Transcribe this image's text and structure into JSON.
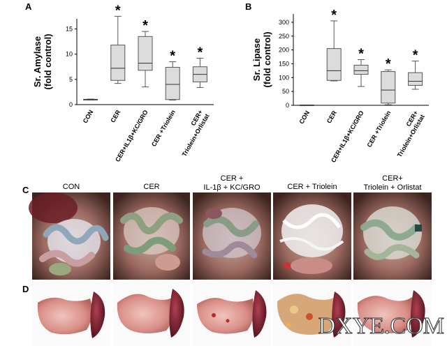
{
  "panels": {
    "A": "A",
    "B": "B",
    "C": "C",
    "D": "D"
  },
  "chart_data": [
    {
      "type": "box",
      "panel": "A",
      "ylabel": "Sr. Amylase (fold control)",
      "ylabel_lines": [
        "Sr. Amylase",
        "(fold control)"
      ],
      "ylim": [
        0,
        17
      ],
      "yticks": [
        0,
        5,
        10,
        15
      ],
      "categories": [
        "CON",
        "CER",
        "CER+IL1β+KC/GRO",
        "CER +Triolein",
        "CER+ Triolein+Orlistat"
      ],
      "category_lines": [
        [
          "CON"
        ],
        [
          "CER"
        ],
        [
          "CER+IL1β+KC/GRO"
        ],
        [
          "CER +Triolein"
        ],
        [
          "CER+",
          "Triolein+Orlistat"
        ]
      ],
      "boxes": [
        {
          "min": 0.9,
          "q1": 0.95,
          "median": 1.0,
          "q3": 1.05,
          "max": 1.1
        },
        {
          "min": 4.2,
          "q1": 4.8,
          "median": 7.2,
          "q3": 11.8,
          "max": 17.5
        },
        {
          "min": 3.5,
          "q1": 6.8,
          "median": 8.2,
          "q3": 13.5,
          "max": 14.5
        },
        {
          "min": 0.9,
          "q1": 1.0,
          "median": 4.0,
          "q3": 7.4,
          "max": 8.5
        },
        {
          "min": 3.4,
          "q1": 4.5,
          "median": 6.0,
          "q3": 7.5,
          "max": 9.2
        }
      ],
      "significance": [
        "",
        "*",
        "*",
        "*",
        "*"
      ],
      "grid": false
    },
    {
      "type": "box",
      "panel": "B",
      "ylabel": "Sr. Lipase (fold control)",
      "ylabel_lines": [
        "Sr. Lipase",
        "(fold control)"
      ],
      "ylim": [
        0,
        330
      ],
      "yticks": [
        0,
        50,
        100,
        150,
        200,
        250,
        300
      ],
      "categories": [
        "CON",
        "CER",
        "CER+IL1β+KC/GRO",
        "CER +Triolein",
        "CER+ Triolein+Orlistat"
      ],
      "category_lines": [
        [
          "CON"
        ],
        [
          "CER"
        ],
        [
          "CER+IL1β+KC/GRO"
        ],
        [
          "CER +Triolein"
        ],
        [
          "CER+",
          "Triolein+Orlistat"
        ]
      ],
      "boxes": [
        {
          "min": 0.8,
          "q1": 0.9,
          "median": 1.0,
          "q3": 1.1,
          "max": 1.2
        },
        {
          "min": 88,
          "q1": 90,
          "median": 125,
          "q3": 205,
          "max": 305
        },
        {
          "min": 68,
          "q1": 112,
          "median": 125,
          "q3": 145,
          "max": 165
        },
        {
          "min": 2,
          "q1": 8,
          "median": 55,
          "q3": 122,
          "max": 128
        },
        {
          "min": 58,
          "q1": 72,
          "median": 87,
          "q3": 118,
          "max": 160
        }
      ],
      "significance": [
        "",
        "*",
        "*",
        "*",
        "*"
      ],
      "grid": false
    }
  ],
  "photo_columns": [
    {
      "lines": [
        "CON"
      ]
    },
    {
      "lines": [
        "CER"
      ]
    },
    {
      "lines": [
        "CER +",
        "IL-1β + KC/GRO"
      ]
    },
    {
      "lines": [
        "CER + Triolein"
      ]
    },
    {
      "lines": [
        "CER+",
        "Triolein + Orlistat"
      ]
    }
  ],
  "watermark": "DXYE.COM",
  "colors": {
    "box_fill": "#dcdcdc",
    "box_stroke": "#555555",
    "axis": "#000000"
  }
}
